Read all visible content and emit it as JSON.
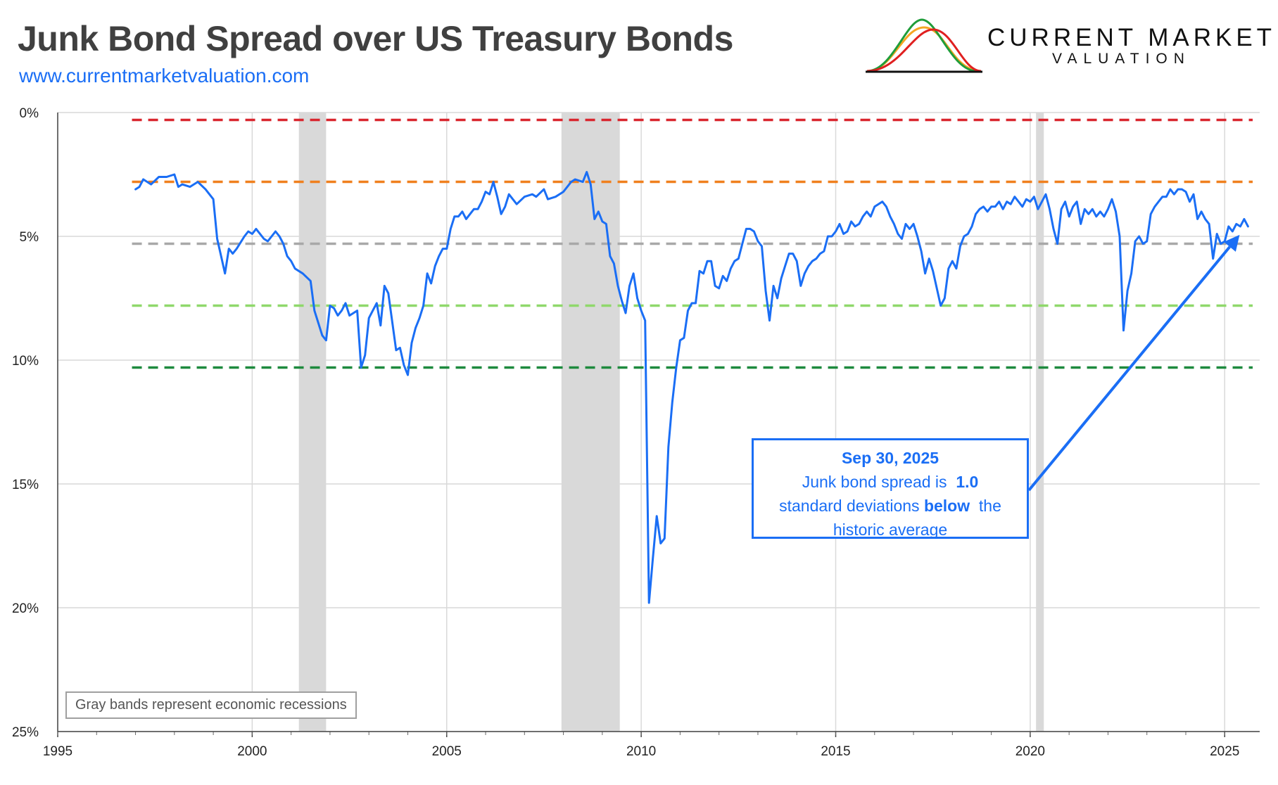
{
  "header": {
    "title": "Junk Bond Spread over US Treasury Bonds",
    "website": "www.currentmarketvaluation.com"
  },
  "brand": {
    "line1": "CURRENT MARKET",
    "line2": "VALUATION",
    "curve_colors": [
      "#f5a623",
      "#1f9d3a",
      "#e02020"
    ]
  },
  "note": "Gray bands represent economic recessions",
  "annotation": {
    "date": "Sep 30, 2025",
    "line1_prefix": "Junk bond spread is",
    "value": "1.0",
    "line2_prefix": "standard deviations",
    "direction": "below",
    "line2_suffix": "the",
    "line3": "historic average"
  },
  "colors": {
    "series": "#1a6ef5",
    "recession_band": "#d9d9d9",
    "grid": "#d9d9d9"
  },
  "chart_data": {
    "type": "line",
    "title": "Junk Bond Spread over US Treasury Bonds",
    "xlabel": "",
    "ylabel": "",
    "x_ticks": [
      1995,
      2000,
      2005,
      2010,
      2015,
      2020,
      2025
    ],
    "y_ticks": [
      "0%",
      "5%",
      "10%",
      "15%",
      "20%",
      "25%"
    ],
    "xlim": [
      1995,
      2025.9
    ],
    "ylim": [
      0,
      25
    ],
    "y_inverted": true,
    "grid": true,
    "recessions": [
      [
        2001.2,
        2001.9
      ],
      [
        2007.95,
        2009.45
      ],
      [
        2020.15,
        2020.35
      ]
    ],
    "reference_lines": [
      {
        "value": 0.3,
        "color": "#d9262e"
      },
      {
        "value": 2.8,
        "color": "#f0801e"
      },
      {
        "value": 5.3,
        "color": "#a8a8a8"
      },
      {
        "value": 7.8,
        "color": "#8fd86b"
      },
      {
        "value": 10.3,
        "color": "#1e8a3e"
      }
    ],
    "series": [
      {
        "values": [
          [
            1997.0,
            3.1
          ],
          [
            1997.1,
            3.0
          ],
          [
            1997.2,
            2.7
          ],
          [
            1997.4,
            2.9
          ],
          [
            1997.6,
            2.6
          ],
          [
            1997.8,
            2.6
          ],
          [
            1998.0,
            2.5
          ],
          [
            1998.1,
            3.0
          ],
          [
            1998.2,
            2.9
          ],
          [
            1998.4,
            3.0
          ],
          [
            1998.6,
            2.8
          ],
          [
            1998.8,
            3.1
          ],
          [
            1998.9,
            3.3
          ],
          [
            1999.0,
            3.5
          ],
          [
            1999.1,
            5.1
          ],
          [
            1999.2,
            5.8
          ],
          [
            1999.3,
            6.5
          ],
          [
            1999.4,
            5.5
          ],
          [
            1999.5,
            5.7
          ],
          [
            1999.6,
            5.5
          ],
          [
            1999.8,
            5.0
          ],
          [
            1999.9,
            4.8
          ],
          [
            2000.0,
            4.9
          ],
          [
            2000.1,
            4.7
          ],
          [
            2000.3,
            5.1
          ],
          [
            2000.4,
            5.2
          ],
          [
            2000.5,
            5.0
          ],
          [
            2000.6,
            4.8
          ],
          [
            2000.7,
            5.0
          ],
          [
            2000.8,
            5.3
          ],
          [
            2000.9,
            5.8
          ],
          [
            2001.0,
            6.0
          ],
          [
            2001.1,
            6.3
          ],
          [
            2001.3,
            6.5
          ],
          [
            2001.5,
            6.8
          ],
          [
            2001.6,
            8.0
          ],
          [
            2001.8,
            9.0
          ],
          [
            2001.9,
            9.2
          ],
          [
            2002.0,
            7.8
          ],
          [
            2002.1,
            7.9
          ],
          [
            2002.2,
            8.2
          ],
          [
            2002.3,
            8.0
          ],
          [
            2002.4,
            7.7
          ],
          [
            2002.5,
            8.2
          ],
          [
            2002.7,
            8.0
          ],
          [
            2002.8,
            10.3
          ],
          [
            2002.9,
            9.8
          ],
          [
            2003.0,
            8.3
          ],
          [
            2003.1,
            8.0
          ],
          [
            2003.2,
            7.7
          ],
          [
            2003.3,
            8.6
          ],
          [
            2003.4,
            7.0
          ],
          [
            2003.5,
            7.3
          ],
          [
            2003.7,
            9.6
          ],
          [
            2003.8,
            9.5
          ],
          [
            2003.9,
            10.2
          ],
          [
            2004.0,
            10.6
          ],
          [
            2004.1,
            9.3
          ],
          [
            2004.2,
            8.7
          ],
          [
            2004.3,
            8.3
          ],
          [
            2004.4,
            7.8
          ],
          [
            2004.5,
            6.5
          ],
          [
            2004.6,
            6.9
          ],
          [
            2004.7,
            6.2
          ],
          [
            2004.8,
            5.8
          ],
          [
            2004.9,
            5.5
          ],
          [
            2005.0,
            5.5
          ],
          [
            2005.1,
            4.7
          ],
          [
            2005.2,
            4.2
          ],
          [
            2005.3,
            4.2
          ],
          [
            2005.4,
            4.0
          ],
          [
            2005.5,
            4.3
          ],
          [
            2005.6,
            4.1
          ],
          [
            2005.7,
            3.9
          ],
          [
            2005.8,
            3.9
          ],
          [
            2005.9,
            3.6
          ],
          [
            2006.0,
            3.2
          ],
          [
            2006.1,
            3.3
          ],
          [
            2006.2,
            2.8
          ],
          [
            2006.3,
            3.4
          ],
          [
            2006.4,
            4.1
          ],
          [
            2006.5,
            3.8
          ],
          [
            2006.6,
            3.3
          ],
          [
            2006.8,
            3.7
          ],
          [
            2007.0,
            3.4
          ],
          [
            2007.2,
            3.3
          ],
          [
            2007.3,
            3.4
          ],
          [
            2007.5,
            3.1
          ],
          [
            2007.6,
            3.5
          ],
          [
            2007.8,
            3.4
          ],
          [
            2008.0,
            3.2
          ],
          [
            2008.2,
            2.8
          ],
          [
            2008.3,
            2.7
          ],
          [
            2008.5,
            2.8
          ],
          [
            2008.6,
            2.4
          ],
          [
            2008.7,
            2.9
          ],
          [
            2008.8,
            4.3
          ],
          [
            2008.9,
            4.0
          ],
          [
            2009.0,
            4.4
          ],
          [
            2009.1,
            4.5
          ],
          [
            2009.2,
            5.8
          ],
          [
            2009.3,
            6.1
          ],
          [
            2009.4,
            7.0
          ],
          [
            2009.5,
            7.6
          ],
          [
            2009.6,
            8.1
          ],
          [
            2009.7,
            7.0
          ],
          [
            2009.8,
            6.5
          ],
          [
            2009.9,
            7.5
          ],
          [
            2010.0,
            8.0
          ],
          [
            2010.1,
            8.4
          ],
          [
            2010.2,
            19.8
          ],
          [
            2010.3,
            18.0
          ],
          [
            2010.4,
            16.3
          ],
          [
            2010.5,
            17.4
          ],
          [
            2010.6,
            17.2
          ],
          [
            2010.7,
            13.5
          ],
          [
            2010.8,
            11.7
          ],
          [
            2010.9,
            10.3
          ],
          [
            2011.0,
            9.2
          ],
          [
            2011.1,
            9.1
          ],
          [
            2011.2,
            8.0
          ],
          [
            2011.3,
            7.7
          ],
          [
            2011.4,
            7.7
          ],
          [
            2011.5,
            6.4
          ],
          [
            2011.6,
            6.5
          ],
          [
            2011.7,
            6.0
          ],
          [
            2011.8,
            6.0
          ],
          [
            2011.9,
            7.0
          ],
          [
            2012.0,
            7.1
          ],
          [
            2012.1,
            6.6
          ],
          [
            2012.2,
            6.8
          ],
          [
            2012.3,
            6.3
          ],
          [
            2012.4,
            6.0
          ],
          [
            2012.5,
            5.9
          ],
          [
            2012.6,
            5.3
          ],
          [
            2012.7,
            4.7
          ],
          [
            2012.8,
            4.7
          ],
          [
            2012.9,
            4.8
          ],
          [
            2013.0,
            5.2
          ],
          [
            2013.1,
            5.4
          ],
          [
            2013.2,
            7.2
          ],
          [
            2013.3,
            8.4
          ],
          [
            2013.4,
            7.0
          ],
          [
            2013.5,
            7.5
          ],
          [
            2013.6,
            6.7
          ],
          [
            2013.7,
            6.2
          ],
          [
            2013.8,
            5.7
          ],
          [
            2013.9,
            5.7
          ],
          [
            2014.0,
            6.0
          ],
          [
            2014.1,
            7.0
          ],
          [
            2014.2,
            6.5
          ],
          [
            2014.3,
            6.2
          ],
          [
            2014.4,
            6.0
          ],
          [
            2014.5,
            5.9
          ],
          [
            2014.6,
            5.7
          ],
          [
            2014.7,
            5.6
          ],
          [
            2014.8,
            5.0
          ],
          [
            2014.9,
            5.0
          ],
          [
            2015.0,
            4.8
          ],
          [
            2015.1,
            4.5
          ],
          [
            2015.2,
            4.9
          ],
          [
            2015.3,
            4.8
          ],
          [
            2015.4,
            4.4
          ],
          [
            2015.5,
            4.6
          ],
          [
            2015.6,
            4.5
          ],
          [
            2015.7,
            4.2
          ],
          [
            2015.8,
            4.0
          ],
          [
            2015.9,
            4.2
          ],
          [
            2016.0,
            3.8
          ],
          [
            2016.1,
            3.7
          ],
          [
            2016.2,
            3.6
          ],
          [
            2016.3,
            3.8
          ],
          [
            2016.4,
            4.2
          ],
          [
            2016.5,
            4.5
          ],
          [
            2016.6,
            4.9
          ],
          [
            2016.7,
            5.1
          ],
          [
            2016.8,
            4.5
          ],
          [
            2016.9,
            4.7
          ],
          [
            2017.0,
            4.5
          ],
          [
            2017.1,
            5.0
          ],
          [
            2017.2,
            5.6
          ],
          [
            2017.3,
            6.5
          ],
          [
            2017.4,
            5.9
          ],
          [
            2017.5,
            6.4
          ],
          [
            2017.6,
            7.1
          ],
          [
            2017.7,
            7.8
          ],
          [
            2017.8,
            7.5
          ],
          [
            2017.9,
            6.3
          ],
          [
            2018.0,
            6.0
          ],
          [
            2018.1,
            6.3
          ],
          [
            2018.2,
            5.4
          ],
          [
            2018.3,
            5.0
          ],
          [
            2018.4,
            4.9
          ],
          [
            2018.5,
            4.6
          ],
          [
            2018.6,
            4.1
          ],
          [
            2018.7,
            3.9
          ],
          [
            2018.8,
            3.8
          ],
          [
            2018.9,
            4.0
          ],
          [
            2019.0,
            3.8
          ],
          [
            2019.1,
            3.8
          ],
          [
            2019.2,
            3.6
          ],
          [
            2019.3,
            3.9
          ],
          [
            2019.4,
            3.6
          ],
          [
            2019.5,
            3.7
          ],
          [
            2019.6,
            3.4
          ],
          [
            2019.7,
            3.6
          ],
          [
            2019.8,
            3.8
          ],
          [
            2019.9,
            3.5
          ],
          [
            2020.0,
            3.6
          ],
          [
            2020.1,
            3.4
          ],
          [
            2020.2,
            3.9
          ],
          [
            2020.3,
            3.6
          ],
          [
            2020.4,
            3.3
          ],
          [
            2020.5,
            3.9
          ],
          [
            2020.6,
            4.7
          ],
          [
            2020.7,
            5.3
          ],
          [
            2020.8,
            3.9
          ],
          [
            2020.9,
            3.6
          ],
          [
            2021.0,
            4.2
          ],
          [
            2021.1,
            3.8
          ],
          [
            2021.2,
            3.6
          ],
          [
            2021.3,
            4.5
          ],
          [
            2021.4,
            3.9
          ],
          [
            2021.5,
            4.1
          ],
          [
            2021.6,
            3.9
          ],
          [
            2021.7,
            4.2
          ],
          [
            2021.8,
            4.0
          ],
          [
            2021.9,
            4.2
          ],
          [
            2022.0,
            3.9
          ],
          [
            2022.1,
            3.5
          ],
          [
            2022.2,
            4.0
          ],
          [
            2022.3,
            5.0
          ],
          [
            2022.4,
            8.8
          ],
          [
            2022.5,
            7.2
          ],
          [
            2022.6,
            6.5
          ],
          [
            2022.7,
            5.2
          ],
          [
            2022.8,
            5.0
          ],
          [
            2022.9,
            5.3
          ],
          [
            2023.0,
            5.2
          ],
          [
            2023.1,
            4.1
          ],
          [
            2023.2,
            3.8
          ],
          [
            2023.3,
            3.6
          ],
          [
            2023.4,
            3.4
          ],
          [
            2023.5,
            3.4
          ],
          [
            2023.6,
            3.1
          ],
          [
            2023.7,
            3.3
          ],
          [
            2023.8,
            3.1
          ],
          [
            2023.9,
            3.1
          ],
          [
            2024.0,
            3.2
          ],
          [
            2024.1,
            3.6
          ],
          [
            2024.2,
            3.3
          ],
          [
            2024.3,
            4.3
          ],
          [
            2024.4,
            4.0
          ],
          [
            2024.5,
            4.3
          ],
          [
            2024.6,
            4.5
          ],
          [
            2024.7,
            5.9
          ],
          [
            2024.8,
            4.9
          ],
          [
            2024.9,
            5.3
          ],
          [
            2025.0,
            5.2
          ],
          [
            2025.1,
            4.6
          ],
          [
            2025.2,
            4.8
          ],
          [
            2025.3,
            4.5
          ],
          [
            2025.4,
            4.6
          ],
          [
            2025.5,
            4.3
          ],
          [
            2025.6,
            4.6
          ]
        ]
      }
    ]
  }
}
